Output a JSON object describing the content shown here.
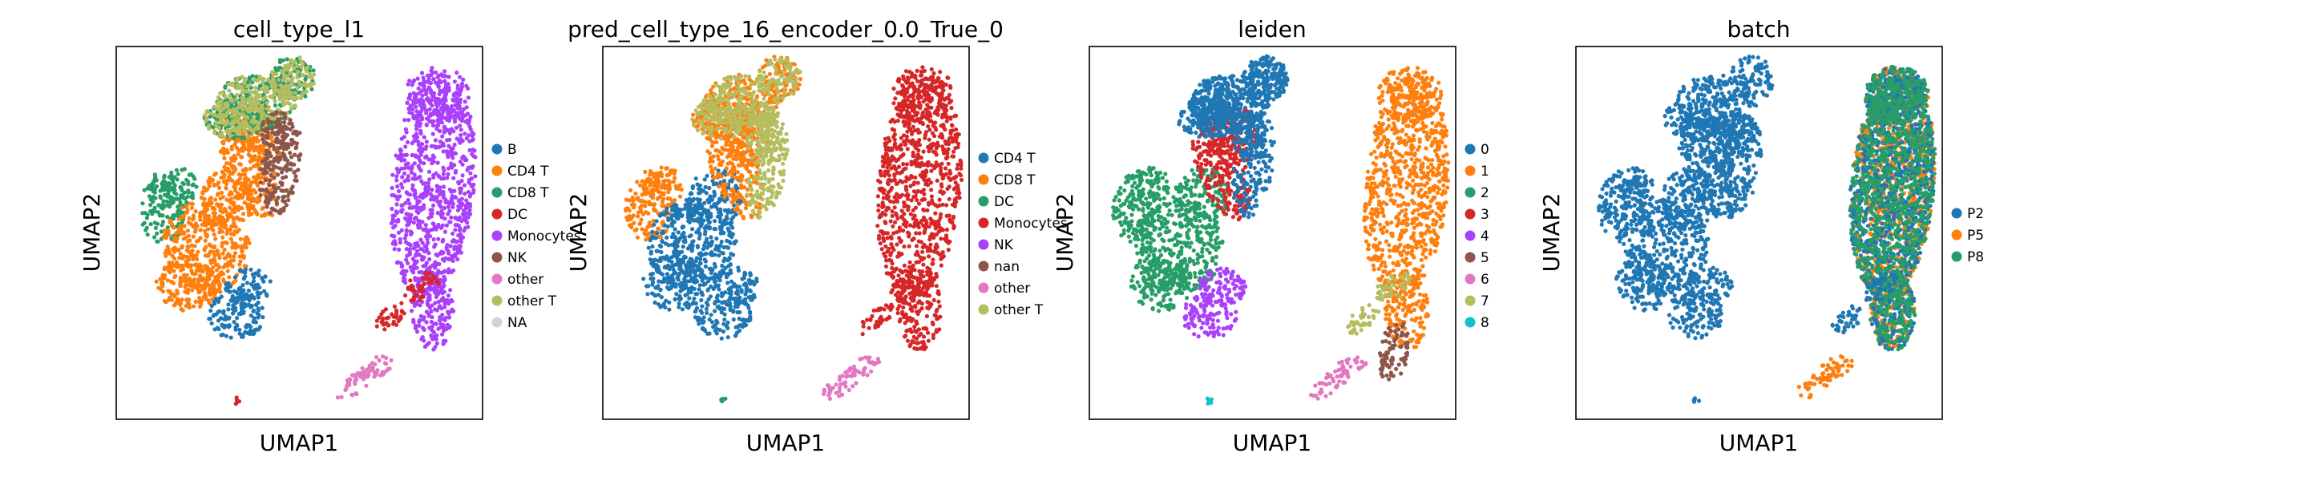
{
  "chart_data": [
    {
      "type": "scatter",
      "title": "cell_type_l1",
      "xlabel": "UMAP1",
      "ylabel": "UMAP2",
      "grid": false,
      "ticks": false,
      "legend_placement": "right",
      "legend": [
        {
          "label": "B",
          "color": "#1f77b4"
        },
        {
          "label": "CD4 T",
          "color": "#ff7f0e"
        },
        {
          "label": "CD8 T",
          "color": "#279e68"
        },
        {
          "label": "DC",
          "color": "#d62728"
        },
        {
          "label": "Monocytes",
          "color": "#aa40fc"
        },
        {
          "label": "NK",
          "color": "#8c564b"
        },
        {
          "label": "other",
          "color": "#e377c2"
        },
        {
          "label": "other T",
          "color": "#b5bd61"
        },
        {
          "label": "NA",
          "color": "#d3d3d3"
        }
      ],
      "clusters": [
        {
          "category": "CD8 T",
          "region": "left-blob",
          "ux": 0.11,
          "uy": 0.6
        },
        {
          "category": "CD4 T",
          "region": "center-left",
          "ux": 0.24,
          "uy": 0.52
        },
        {
          "category": "CD4 T",
          "region": "center-column",
          "ux": 0.34,
          "uy": 0.64
        },
        {
          "category": "CD8 T",
          "region": "top",
          "ux": 0.42,
          "uy": 0.86
        },
        {
          "category": "other T",
          "region": "top",
          "ux": 0.45,
          "uy": 0.79
        },
        {
          "category": "NK",
          "region": "center-right",
          "ux": 0.45,
          "uy": 0.64
        },
        {
          "category": "B",
          "region": "bottom-center",
          "ux": 0.33,
          "uy": 0.34
        },
        {
          "category": "Monocytes",
          "region": "right-island",
          "ux": 0.86,
          "uy": 0.62
        },
        {
          "category": "DC",
          "region": "right-tail",
          "ux": 0.75,
          "uy": 0.34
        },
        {
          "category": "other",
          "region": "bottom-right",
          "ux": 0.66,
          "uy": 0.1
        },
        {
          "category": "DC",
          "region": "bottom-dot",
          "ux": 0.33,
          "uy": 0.05
        }
      ]
    },
    {
      "type": "scatter",
      "title": "pred_cell_type_16_encoder_0.0_True_0",
      "xlabel": "UMAP1",
      "ylabel": "UMAP2",
      "grid": false,
      "ticks": false,
      "legend_placement": "right",
      "legend": [
        {
          "label": "CD4 T",
          "color": "#1f77b4"
        },
        {
          "label": "CD8 T",
          "color": "#ff7f0e"
        },
        {
          "label": "DC",
          "color": "#279e68"
        },
        {
          "label": "Monocytes",
          "color": "#d62728"
        },
        {
          "label": "NK",
          "color": "#aa40fc"
        },
        {
          "label": "nan",
          "color": "#8c564b"
        },
        {
          "label": "other",
          "color": "#e377c2"
        },
        {
          "label": "other T",
          "color": "#b5bd61"
        }
      ],
      "clusters": [
        {
          "category": "CD8 T",
          "region": "left-blob",
          "ux": 0.11,
          "uy": 0.6
        },
        {
          "category": "CD4 T",
          "region": "center-left",
          "ux": 0.24,
          "uy": 0.52
        },
        {
          "category": "CD8 T",
          "region": "center-column",
          "ux": 0.34,
          "uy": 0.64
        },
        {
          "category": "CD8 T",
          "region": "top",
          "ux": 0.42,
          "uy": 0.86
        },
        {
          "category": "other T",
          "region": "top",
          "ux": 0.45,
          "uy": 0.79
        },
        {
          "category": "other T",
          "region": "center-right",
          "ux": 0.45,
          "uy": 0.64
        },
        {
          "category": "CD4 T",
          "region": "bottom-center",
          "ux": 0.33,
          "uy": 0.34
        },
        {
          "category": "Monocytes",
          "region": "right-island",
          "ux": 0.86,
          "uy": 0.62
        },
        {
          "category": "Monocytes",
          "region": "right-tail",
          "ux": 0.75,
          "uy": 0.34
        },
        {
          "category": "other",
          "region": "bottom-right",
          "ux": 0.66,
          "uy": 0.1
        },
        {
          "category": "DC",
          "region": "bottom-dot",
          "ux": 0.33,
          "uy": 0.05
        }
      ]
    },
    {
      "type": "scatter",
      "title": "leiden",
      "xlabel": "UMAP1",
      "ylabel": "UMAP2",
      "grid": false,
      "ticks": false,
      "legend_placement": "right",
      "legend": [
        {
          "label": "0",
          "color": "#1f77b4"
        },
        {
          "label": "1",
          "color": "#ff7f0e"
        },
        {
          "label": "2",
          "color": "#279e68"
        },
        {
          "label": "3",
          "color": "#d62728"
        },
        {
          "label": "4",
          "color": "#aa40fc"
        },
        {
          "label": "5",
          "color": "#8c564b"
        },
        {
          "label": "6",
          "color": "#e377c2"
        },
        {
          "label": "7",
          "color": "#b5bd61"
        },
        {
          "label": "8",
          "color": "#17becf"
        }
      ],
      "clusters": [
        {
          "category": "2",
          "region": "left-blob",
          "ux": 0.11,
          "uy": 0.6
        },
        {
          "category": "2",
          "region": "center-left",
          "ux": 0.24,
          "uy": 0.52
        },
        {
          "category": "3",
          "region": "center-column",
          "ux": 0.34,
          "uy": 0.64
        },
        {
          "category": "0",
          "region": "top",
          "ux": 0.42,
          "uy": 0.86
        },
        {
          "category": "0",
          "region": "top",
          "ux": 0.45,
          "uy": 0.79
        },
        {
          "category": "0",
          "region": "center-right",
          "ux": 0.45,
          "uy": 0.64
        },
        {
          "category": "4",
          "region": "bottom-center",
          "ux": 0.33,
          "uy": 0.34
        },
        {
          "category": "1",
          "region": "right-island",
          "ux": 0.86,
          "uy": 0.62
        },
        {
          "category": "7",
          "region": "right-tail",
          "ux": 0.75,
          "uy": 0.34
        },
        {
          "category": "5",
          "region": "right-tail-lower",
          "ux": 0.8,
          "uy": 0.22
        },
        {
          "category": "6",
          "region": "bottom-right",
          "ux": 0.66,
          "uy": 0.1
        },
        {
          "category": "8",
          "region": "bottom-dot",
          "ux": 0.33,
          "uy": 0.05
        }
      ]
    },
    {
      "type": "scatter",
      "title": "batch",
      "xlabel": "UMAP1",
      "ylabel": "UMAP2",
      "grid": false,
      "ticks": false,
      "legend_placement": "right",
      "legend": [
        {
          "label": "P2",
          "color": "#1f77b4"
        },
        {
          "label": "P5",
          "color": "#ff7f0e"
        },
        {
          "label": "P8",
          "color": "#279e68"
        }
      ],
      "clusters": [
        {
          "category": "P2",
          "region": "left-blob",
          "ux": 0.11,
          "uy": 0.6
        },
        {
          "category": "P2",
          "region": "center-left",
          "ux": 0.24,
          "uy": 0.52
        },
        {
          "category": "P2",
          "region": "center-column",
          "ux": 0.34,
          "uy": 0.64
        },
        {
          "category": "P2",
          "region": "top",
          "ux": 0.42,
          "uy": 0.86
        },
        {
          "category": "P2",
          "region": "center-right",
          "ux": 0.45,
          "uy": 0.64
        },
        {
          "category": "P2",
          "region": "bottom-center",
          "ux": 0.33,
          "uy": 0.34
        },
        {
          "category": "P5",
          "region": "right-island",
          "ux": 0.86,
          "uy": 0.62
        },
        {
          "category": "P2",
          "region": "right-island",
          "ux": 0.86,
          "uy": 0.62
        },
        {
          "category": "P8",
          "region": "right-island",
          "ux": 0.86,
          "uy": 0.62
        },
        {
          "category": "P2",
          "region": "right-tail",
          "ux": 0.75,
          "uy": 0.34
        },
        {
          "category": "P5",
          "region": "bottom-right",
          "ux": 0.66,
          "uy": 0.1
        },
        {
          "category": "P2",
          "region": "bottom-dot",
          "ux": 0.33,
          "uy": 0.05
        }
      ]
    }
  ]
}
